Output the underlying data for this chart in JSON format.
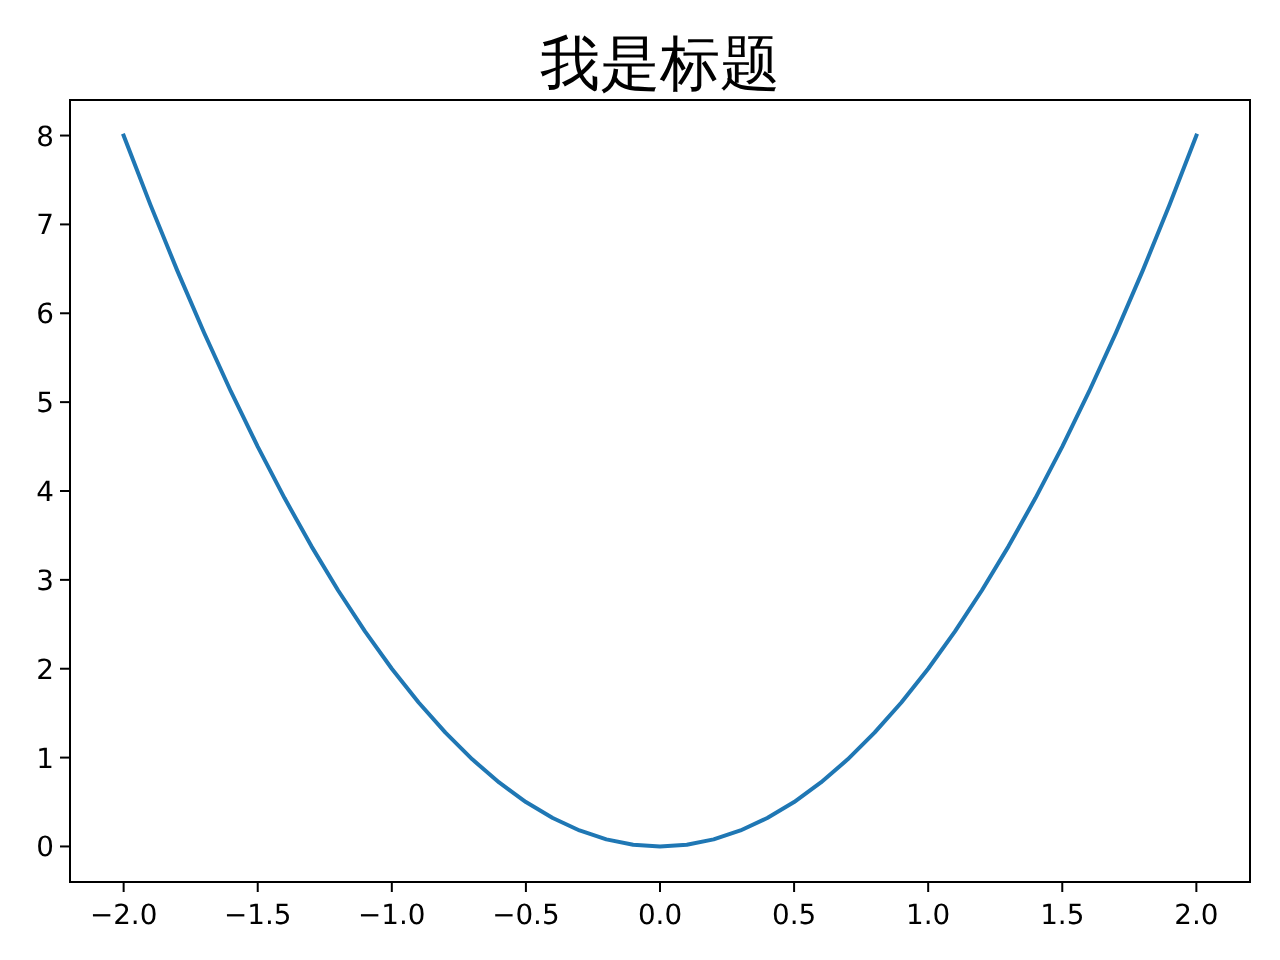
{
  "chart_data": {
    "type": "line",
    "title": "我是标题",
    "x": [
      -2,
      -1.9,
      -1.8,
      -1.7,
      -1.6,
      -1.5,
      -1.4,
      -1.3,
      -1.2,
      -1.1,
      -1,
      -0.9,
      -0.8,
      -0.7,
      -0.6,
      -0.5,
      -0.4,
      -0.3,
      -0.2,
      -0.1,
      0,
      0.1,
      0.2,
      0.3,
      0.4,
      0.5,
      0.6,
      0.7,
      0.8,
      0.9,
      1,
      1.1,
      1.2,
      1.3,
      1.4,
      1.5,
      1.6,
      1.7,
      1.8,
      1.9,
      2
    ],
    "values": [
      8,
      7.22,
      6.48,
      5.78,
      5.12,
      4.5,
      3.92,
      3.38,
      2.88,
      2.42,
      2,
      1.62,
      1.28,
      0.98,
      0.72,
      0.5,
      0.32,
      0.18,
      0.08,
      0.02,
      0,
      0.02,
      0.08,
      0.18,
      0.32,
      0.5,
      0.72,
      0.98,
      1.28,
      1.62,
      2,
      2.42,
      2.88,
      3.38,
      3.92,
      4.5,
      5.12,
      5.78,
      6.48,
      7.22,
      8
    ],
    "color": "#1f77b4",
    "xlim": [
      -2.2,
      2.2
    ],
    "ylim": [
      -0.4,
      8.4
    ],
    "xticks": [
      {
        "value": -2,
        "label": "−2.0"
      },
      {
        "value": -1.5,
        "label": "−1.5"
      },
      {
        "value": -1,
        "label": "−1.0"
      },
      {
        "value": -0.5,
        "label": "−0.5"
      },
      {
        "value": 0,
        "label": "0.0"
      },
      {
        "value": 0.5,
        "label": "0.5"
      },
      {
        "value": 1,
        "label": "1.0"
      },
      {
        "value": 1.5,
        "label": "1.5"
      },
      {
        "value": 2,
        "label": "2.0"
      }
    ],
    "yticks": [
      0,
      1,
      2,
      3,
      4,
      5,
      6,
      7,
      8
    ]
  }
}
